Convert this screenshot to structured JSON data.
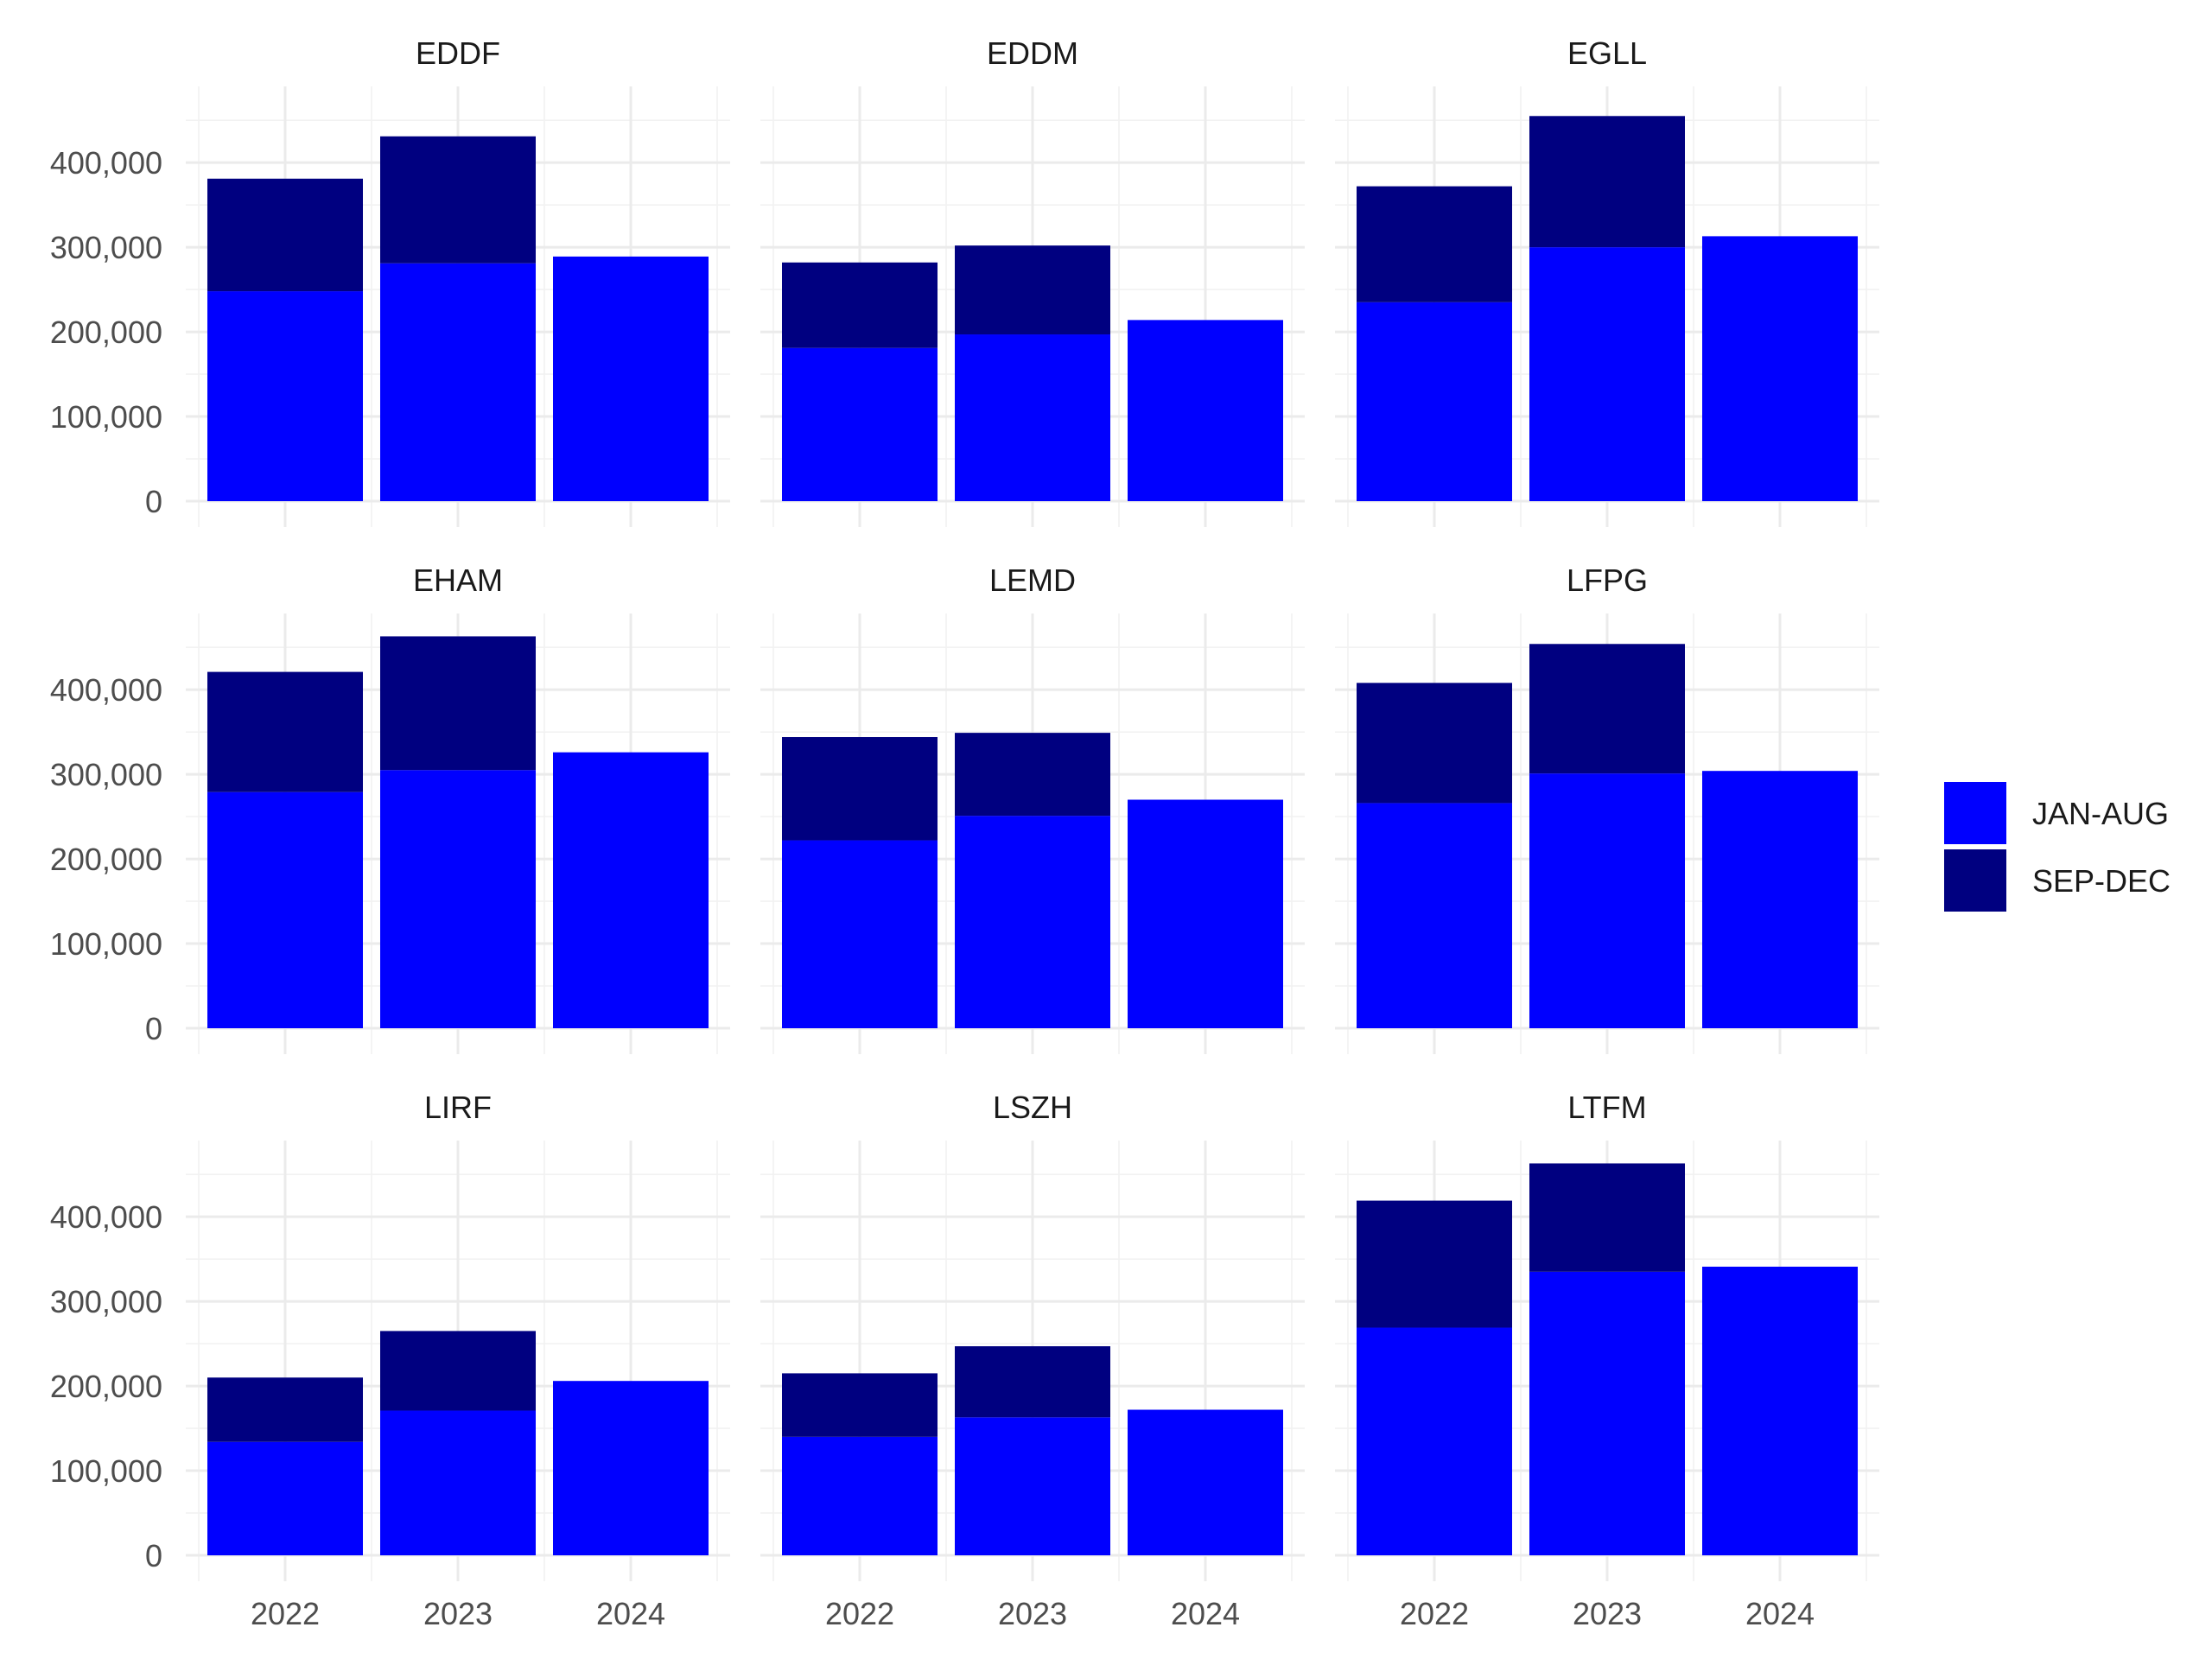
{
  "chart_data": {
    "type": "bar",
    "stacked": true,
    "facet_layout": "3x3 grid",
    "categories": [
      "2022",
      "2023",
      "2024"
    ],
    "ylim": [
      0,
      490000
    ],
    "y_ticks": [
      0,
      100000,
      200000,
      300000,
      400000
    ],
    "y_tick_labels": [
      "0",
      "100,000",
      "200,000",
      "300,000",
      "400,000"
    ],
    "legend_position": "right",
    "legend": [
      {
        "name": "JAN-AUG",
        "color": "#0000FF"
      },
      {
        "name": "SEP-DEC",
        "color": "#000080"
      }
    ],
    "panels": [
      {
        "title": "EDDF",
        "series": [
          {
            "name": "JAN-AUG",
            "values": [
              248000,
              281000,
              289000
            ]
          },
          {
            "name": "SEP-DEC",
            "values": [
              133000,
              150000,
              0
            ]
          }
        ]
      },
      {
        "title": "EDDM",
        "series": [
          {
            "name": "JAN-AUG",
            "values": [
              181000,
              197000,
              214000
            ]
          },
          {
            "name": "SEP-DEC",
            "values": [
              101000,
              105000,
              0
            ]
          }
        ]
      },
      {
        "title": "EGLL",
        "series": [
          {
            "name": "JAN-AUG",
            "values": [
              235000,
              300000,
              313000
            ]
          },
          {
            "name": "SEP-DEC",
            "values": [
              137000,
              155000,
              0
            ]
          }
        ]
      },
      {
        "title": "EHAM",
        "series": [
          {
            "name": "JAN-AUG",
            "values": [
              279000,
              305000,
              326000
            ]
          },
          {
            "name": "SEP-DEC",
            "values": [
              142000,
              158000,
              0
            ]
          }
        ]
      },
      {
        "title": "LEMD",
        "series": [
          {
            "name": "JAN-AUG",
            "values": [
              222000,
              251000,
              270000
            ]
          },
          {
            "name": "SEP-DEC",
            "values": [
              122000,
              98000,
              0
            ]
          }
        ]
      },
      {
        "title": "LFPG",
        "series": [
          {
            "name": "JAN-AUG",
            "values": [
              266000,
              301000,
              304000
            ]
          },
          {
            "name": "SEP-DEC",
            "values": [
              142000,
              153000,
              0
            ]
          }
        ]
      },
      {
        "title": "LIRF",
        "series": [
          {
            "name": "JAN-AUG",
            "values": [
              134000,
              171000,
              206000
            ]
          },
          {
            "name": "SEP-DEC",
            "values": [
              76000,
              94000,
              0
            ]
          }
        ]
      },
      {
        "title": "LSZH",
        "series": [
          {
            "name": "JAN-AUG",
            "values": [
              140000,
              163000,
              172000
            ]
          },
          {
            "name": "SEP-DEC",
            "values": [
              75000,
              84000,
              0
            ]
          }
        ]
      },
      {
        "title": "LTFM",
        "series": [
          {
            "name": "JAN-AUG",
            "values": [
              269000,
              335000,
              341000
            ]
          },
          {
            "name": "SEP-DEC",
            "values": [
              150000,
              128000,
              0
            ]
          }
        ]
      }
    ]
  }
}
